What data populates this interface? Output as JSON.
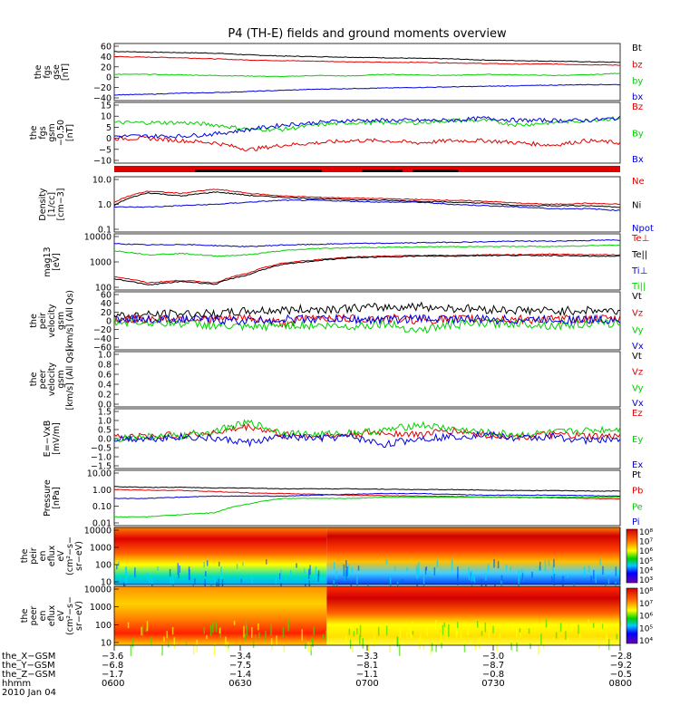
{
  "title": "P4 (TH-E) fields and ground moments overview",
  "colors": {
    "black": "#000000",
    "red": "#e00000",
    "green": "#00d000",
    "blue": "#0000e0"
  },
  "panels": [
    {
      "ylabel": [
        "the",
        "fgs",
        "gse",
        "[nT]"
      ],
      "yticks": [
        "60",
        "40",
        "20",
        "0",
        "−20",
        "−40"
      ],
      "legend": [
        [
          "Bt",
          "black"
        ],
        [
          "bz",
          "red"
        ],
        [
          "by",
          "green"
        ],
        [
          "bx",
          "blue"
        ]
      ]
    },
    {
      "ylabel": [
        "the",
        "fgs",
        "gsm",
        "−0.50",
        "[nT]"
      ],
      "yticks": [
        "15",
        "10",
        "5",
        "0",
        "−5",
        "−10"
      ],
      "legend": [
        [
          "Bz",
          "red"
        ],
        [
          "By",
          "green"
        ],
        [
          "Bx",
          "blue"
        ]
      ]
    },
    {
      "ylabel": [
        "Density",
        "[1/cc]",
        "[cm−3]"
      ],
      "yticks": [
        "10.0",
        "1.0",
        "0.1"
      ],
      "legend": [
        [
          "Ne",
          "red"
        ],
        [
          "Ni",
          "black"
        ],
        [
          "Npot",
          "blue"
        ]
      ]
    },
    {
      "ylabel": [
        "mag13",
        "[eV]"
      ],
      "yticks": [
        "10000",
        "1000",
        "100"
      ],
      "legend": [
        [
          "Te⊥",
          "red"
        ],
        [
          "Te||",
          "black"
        ],
        [
          "Ti⊥",
          "blue"
        ],
        [
          "Ti||",
          "green"
        ]
      ]
    },
    {
      "ylabel": [
        "the",
        "peir",
        "velocity",
        "gsm",
        "[km/s] (All Qs)"
      ],
      "yticks": [
        "60",
        "40",
        "20",
        "0",
        "−20",
        "−40",
        "−60"
      ],
      "legend": [
        [
          "Vt",
          "black"
        ],
        [
          "Vz",
          "red"
        ],
        [
          "Vy",
          "green"
        ],
        [
          "Vx",
          "blue"
        ]
      ]
    },
    {
      "ylabel": [
        "the",
        "peer",
        "velocity",
        "gsm",
        "[km/s] (All Qs)"
      ],
      "yticks": [
        "1.0",
        "0.8",
        "0.6",
        "0.4",
        "0.2",
        "0.0"
      ],
      "legend": [
        [
          "Vt",
          "black"
        ],
        [
          "Vz",
          "red"
        ],
        [
          "Vy",
          "green"
        ],
        [
          "Vx",
          "blue"
        ]
      ]
    },
    {
      "ylabel": [
        "E=−VxB",
        "[mV/m]"
      ],
      "yticks": [
        "1.5",
        "1.0",
        "0.5",
        "0.0",
        "−0.5",
        "−1.0",
        "−1.5"
      ],
      "legend": [
        [
          "Ez",
          "red"
        ],
        [
          "Ey",
          "green"
        ],
        [
          "Ex",
          "blue"
        ]
      ]
    },
    {
      "ylabel": [
        "Pressure",
        "[nPa]"
      ],
      "yticks": [
        "10.00",
        "1.00",
        "0.10",
        "0.01"
      ],
      "legend": [
        [
          "Pt",
          "black"
        ],
        [
          "Pb",
          "red"
        ],
        [
          "Pe",
          "green"
        ],
        [
          "Pi",
          "blue"
        ]
      ]
    },
    {
      "ylabel": [
        "the",
        "peir",
        "en",
        "eflux",
        "eV",
        "(cm²−s−",
        "sr−eV)"
      ],
      "yticks": [
        "10000",
        "1000",
        "100",
        "10"
      ],
      "colorbar": [
        "10⁸",
        "10⁷",
        "10⁶",
        "10⁵",
        "10⁴",
        "10³"
      ]
    },
    {
      "ylabel": [
        "the",
        "peer",
        "en",
        "eflux",
        "eV",
        "(cm²−s−",
        "sr−eV)"
      ],
      "yticks": [
        "10000",
        "1000",
        "100",
        "10"
      ],
      "colorbar": [
        "10⁸",
        "10⁷",
        "10⁶",
        "10⁵",
        "10⁴"
      ]
    }
  ],
  "xaxis": {
    "rows": [
      {
        "label": "the_X−GSM",
        "values": [
          "−3.6",
          "−3.4",
          "−3.3",
          "−3.0",
          "−2.8"
        ]
      },
      {
        "label": "the_Y−GSM",
        "values": [
          "−6.8",
          "−7.5",
          "−8.1",
          "−8.7",
          "−9.2"
        ]
      },
      {
        "label": "the_Z−GSM",
        "values": [
          "−1.7",
          "−1.4",
          "−1.1",
          "−0.8",
          "−0.5"
        ]
      },
      {
        "label": "hhmm",
        "values": [
          "0600",
          "0630",
          "0700",
          "0730",
          "0800"
        ]
      }
    ],
    "date": "2010 Jan 04"
  },
  "chart_data": [
    {
      "type": "line",
      "name": "fgs gse",
      "x_range": [
        "0600",
        "0800"
      ],
      "ylim": [
        -40,
        60
      ],
      "series": [
        {
          "name": "Bt",
          "color": "black",
          "values": [
            46,
            45,
            44,
            43,
            40,
            38,
            37,
            36,
            35,
            34,
            33,
            31,
            30,
            29,
            28,
            27
          ]
        },
        {
          "name": "bz",
          "color": "red",
          "values": [
            37,
            36,
            35,
            33,
            31,
            30,
            29,
            28,
            27,
            27,
            26,
            25,
            24,
            24,
            23,
            22
          ]
        },
        {
          "name": "by",
          "color": "green",
          "values": [
            6,
            6,
            5,
            4,
            3,
            2,
            4,
            3,
            6,
            5,
            4,
            6,
            5,
            4,
            5,
            8
          ]
        },
        {
          "name": "bx",
          "color": "blue",
          "values": [
            -30,
            -29,
            -27,
            -26,
            -24,
            -22,
            -20,
            -19,
            -18,
            -17,
            -16,
            -15,
            -14,
            -13,
            -12,
            -12
          ]
        }
      ]
    },
    {
      "type": "line",
      "name": "fgs gsm",
      "x_range": [
        "0600",
        "0800"
      ],
      "ylim": [
        -12,
        15
      ],
      "series": [
        {
          "name": "Bz",
          "color": "red",
          "values": [
            -1,
            -1,
            -2,
            -3,
            -6,
            -4,
            -3,
            -2,
            -2,
            -3,
            -2,
            -2,
            -3,
            -4,
            -2,
            -3
          ]
        },
        {
          "name": "By",
          "color": "green",
          "values": [
            6,
            6,
            6,
            5,
            3,
            3,
            5,
            6,
            6,
            6,
            7,
            7,
            5,
            6,
            7,
            8
          ]
        },
        {
          "name": "Bx",
          "color": "blue",
          "values": [
            0,
            0,
            0,
            1,
            3,
            5,
            6,
            7,
            7,
            7,
            7,
            8,
            7,
            7,
            7,
            8
          ]
        }
      ]
    },
    {
      "type": "line",
      "name": "Density",
      "x_range": [
        "0600",
        "0800"
      ],
      "ylim": [
        0.1,
        10
      ],
      "log": true,
      "series": [
        {
          "name": "Ne",
          "color": "red",
          "values": [
            1.2,
            3.0,
            2.5,
            3.5,
            2.5,
            2.0,
            1.8,
            1.7,
            1.6,
            1.5,
            1.4,
            1.3,
            1.1,
            1.0,
            1.1,
            1.0
          ]
        },
        {
          "name": "Ni",
          "color": "black",
          "values": [
            0.9,
            2.6,
            2.0,
            2.8,
            2.1,
            1.8,
            1.6,
            1.5,
            1.4,
            1.3,
            1.2,
            1.1,
            0.9,
            0.9,
            0.9,
            0.8
          ]
        },
        {
          "name": "Npot",
          "color": "blue",
          "values": [
            0.8,
            0.8,
            0.9,
            1.0,
            1.2,
            1.4,
            1.4,
            1.3,
            1.2,
            1.2,
            1.0,
            0.9,
            0.8,
            0.7,
            0.7,
            0.6
          ]
        }
      ]
    },
    {
      "type": "line",
      "name": "Temperature",
      "x_range": [
        "0600",
        "0800"
      ],
      "ylim": [
        100,
        10000
      ],
      "log": true,
      "series": [
        {
          "name": "Te⊥",
          "color": "red",
          "values": [
            300,
            180,
            220,
            180,
            400,
            900,
            1200,
            1500,
            1600,
            1700,
            1700,
            1800,
            1800,
            1900,
            1800,
            1800
          ]
        },
        {
          "name": "Te||",
          "color": "black",
          "values": [
            250,
            150,
            200,
            160,
            350,
            800,
            1100,
            1400,
            1500,
            1600,
            1600,
            1700,
            1700,
            1700,
            1600,
            1600
          ]
        },
        {
          "name": "Ti⊥",
          "color": "blue",
          "values": [
            4500,
            4000,
            4200,
            3800,
            3500,
            4000,
            4200,
            4500,
            4600,
            4800,
            5000,
            5200,
            5500,
            5500,
            5800,
            6000
          ]
        },
        {
          "name": "Ti||",
          "color": "green",
          "values": [
            2500,
            1800,
            2000,
            1600,
            1800,
            2500,
            3000,
            3200,
            3300,
            3400,
            3500,
            3500,
            3600,
            3500,
            3800,
            4000
          ]
        }
      ]
    },
    {
      "type": "line",
      "name": "ion velocity",
      "x_range": [
        "0600",
        "0800"
      ],
      "ylim": [
        -60,
        60
      ],
      "series": [
        {
          "name": "Vt",
          "color": "black",
          "values": [
            10,
            12,
            15,
            14,
            20,
            22,
            24,
            26,
            28,
            30,
            26,
            24,
            22,
            20,
            22,
            20
          ]
        },
        {
          "name": "Vz",
          "color": "red",
          "values": [
            2,
            4,
            5,
            3,
            6,
            -5,
            8,
            4,
            5,
            2,
            3,
            4,
            3,
            2,
            4,
            3
          ]
        },
        {
          "name": "Vy",
          "color": "green",
          "values": [
            -2,
            -3,
            -5,
            -10,
            -15,
            -8,
            -10,
            -12,
            -5,
            -20,
            -8,
            -6,
            -5,
            -10,
            -6,
            -5
          ]
        },
        {
          "name": "Vx",
          "color": "blue",
          "values": [
            5,
            3,
            4,
            2,
            0,
            3,
            4,
            3,
            2,
            5,
            4,
            3,
            2,
            3,
            2,
            3
          ]
        }
      ]
    },
    {
      "type": "line",
      "name": "electron velocity",
      "x_range": [
        "0600",
        "0800"
      ],
      "ylim": [
        0,
        1
      ],
      "series": []
    },
    {
      "type": "line",
      "name": "E=-VxB",
      "x_range": [
        "0600",
        "0800"
      ],
      "ylim": [
        -1.5,
        1.5
      ],
      "series": [
        {
          "name": "Ez",
          "color": "red",
          "values": [
            0.1,
            0.1,
            0.2,
            0.3,
            0.6,
            0.2,
            0.1,
            0.2,
            0.3,
            0.2,
            0.4,
            0.2,
            0.1,
            0.2,
            0.1,
            0.1
          ]
        },
        {
          "name": "Ey",
          "color": "green",
          "values": [
            0.0,
            0.1,
            0.1,
            0.4,
            0.8,
            0.3,
            0.2,
            0.3,
            0.4,
            0.7,
            0.5,
            0.3,
            0.2,
            0.3,
            0.4,
            0.5
          ]
        },
        {
          "name": "Ex",
          "color": "blue",
          "values": [
            0.0,
            0.0,
            0.1,
            0.0,
            -0.2,
            0.1,
            0.0,
            0.1,
            -0.3,
            0.0,
            0.1,
            0.2,
            0.0,
            0.1,
            -0.1,
            0.0
          ]
        }
      ]
    },
    {
      "type": "line",
      "name": "Pressure",
      "x_range": [
        "0600",
        "0800"
      ],
      "ylim": [
        0.01,
        10
      ],
      "log": true,
      "series": [
        {
          "name": "Pt",
          "color": "black",
          "values": [
            1.3,
            1.2,
            1.2,
            1.1,
            1.1,
            1.0,
            1.0,
            1.0,
            0.95,
            0.9,
            0.9,
            0.85,
            0.8,
            0.8,
            0.75,
            0.75
          ]
        },
        {
          "name": "Pb",
          "color": "red",
          "values": [
            0.9,
            0.85,
            0.8,
            0.7,
            0.6,
            0.55,
            0.5,
            0.45,
            0.42,
            0.4,
            0.38,
            0.36,
            0.34,
            0.32,
            0.3,
            0.28
          ]
        },
        {
          "name": "Pe",
          "color": "green",
          "values": [
            0.03,
            0.03,
            0.04,
            0.05,
            0.15,
            0.3,
            0.3,
            0.3,
            0.35,
            0.35,
            0.35,
            0.35,
            0.35,
            0.35,
            0.35,
            0.35
          ]
        },
        {
          "name": "Pi",
          "color": "blue",
          "values": [
            0.3,
            0.3,
            0.35,
            0.4,
            0.4,
            0.4,
            0.45,
            0.5,
            0.55,
            0.55,
            0.5,
            0.45,
            0.45,
            0.45,
            0.42,
            0.4
          ]
        }
      ]
    },
    {
      "type": "heatmap",
      "name": "ion energy flux",
      "x_range": [
        "0600",
        "0800"
      ],
      "ylim": [
        10,
        10000
      ],
      "log": true
    },
    {
      "type": "heatmap",
      "name": "electron energy flux",
      "x_range": [
        "0600",
        "0800"
      ],
      "ylim": [
        10,
        10000
      ],
      "log": true
    }
  ]
}
